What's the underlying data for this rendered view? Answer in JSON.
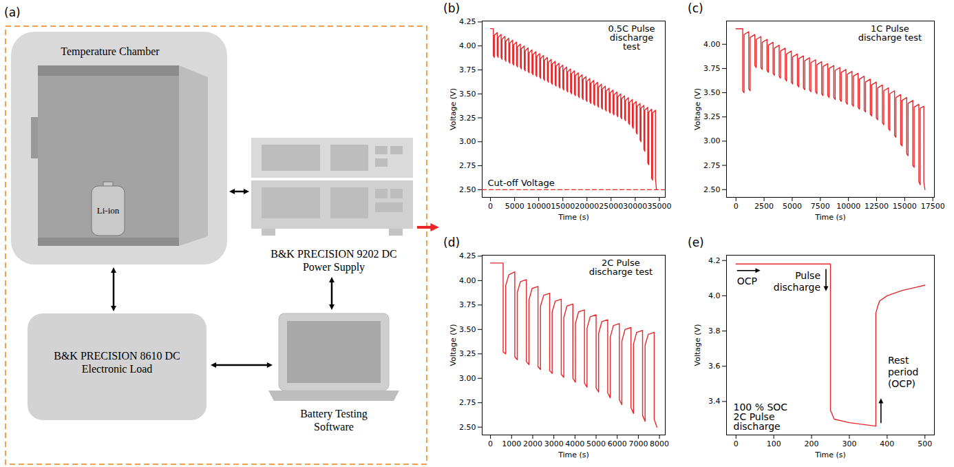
{
  "diagram": {
    "panel_label": "(a)",
    "nodes": [
      {
        "label": "Temperature Chamber"
      },
      {
        "label": "Li-ion"
      },
      {
        "label": "B&K PRECISION 9202 DC Power Supply"
      },
      {
        "label": "B&K PRECISION 8610 DC Electronic Load"
      },
      {
        "label": "Battery Testing Software"
      }
    ]
  },
  "chart_data": [
    {
      "type": "line",
      "panel_label": "(b)",
      "title": "0.5C Pulse discharge test",
      "x_label": "Time (s)",
      "y_label": "Voltage (V)",
      "xlim": [
        -1725,
        36225
      ],
      "ylim": [
        2.42,
        4.26
      ],
      "xticks": [
        0,
        5000,
        10000,
        15000,
        20000,
        25000,
        30000,
        35000
      ],
      "yticks": [
        {
          "value": 2.5,
          "label": "2.50"
        },
        2.75,
        {
          "value": 3,
          "label": "3.00"
        },
        3.25,
        {
          "value": 3.5,
          "label": "3.50"
        },
        3.75,
        {
          "value": 4,
          "label": "4.00"
        },
        4.25
      ],
      "x": [
        0,
        600,
        600,
        800,
        800,
        1400,
        1400,
        1600,
        1600,
        2200,
        2200,
        2400,
        2400,
        3000,
        3000,
        3200,
        3200,
        3800,
        3800,
        4000,
        4000,
        4600,
        4600,
        4800,
        4800,
        5400,
        5400,
        5600,
        5600,
        6200,
        6200,
        6400,
        6400,
        7000,
        7000,
        7200,
        7200,
        7800,
        7800,
        8000,
        8000,
        8600,
        8600,
        8800,
        8800,
        9400,
        9400,
        9600,
        9600,
        10200,
        10200,
        10400,
        10400,
        11000,
        11000,
        11200,
        11200,
        11800,
        11800,
        12000,
        12000,
        12600,
        12600,
        12800,
        12800,
        13400,
        13400,
        13600,
        13600,
        14200,
        14200,
        14400,
        14400,
        15000,
        15000,
        15200,
        15200,
        15800,
        15800,
        16000,
        16000,
        16600,
        16600,
        16800,
        16800,
        17400,
        17400,
        17600,
        17600,
        18200,
        18200,
        18400,
        18400,
        19000,
        19000,
        19200,
        19200,
        19800,
        19800,
        20000,
        20000,
        20600,
        20600,
        20800,
        20800,
        21400,
        21400,
        21600,
        21600,
        22200,
        22200,
        22400,
        22400,
        23000,
        23000,
        23200,
        23200,
        23800,
        23800,
        24000,
        24000,
        24600,
        24600,
        24800,
        24800,
        25400,
        25400,
        25600,
        25600,
        26200,
        26200,
        26400,
        26400,
        27000,
        27000,
        27200,
        27200,
        27800,
        27800,
        28000,
        28000,
        28600,
        28600,
        28800,
        28800,
        29400,
        29400,
        29600,
        29600,
        30200,
        30200,
        30400,
        30400,
        31000,
        31000,
        31200,
        31200,
        31800,
        31800,
        32000,
        32000,
        32600,
        32600,
        32800,
        32800,
        33400,
        33400,
        33600,
        33600,
        34200,
        34200,
        34400
      ],
      "series": [
        {
          "color": "#e8262a",
          "values": [
            4.18,
            4.18,
            3.9,
            3.88,
            4.11,
            4.14,
            3.9,
            3.88,
            4.09,
            4.12,
            3.88,
            3.86,
            4.07,
            4.1,
            3.86,
            3.84,
            4.05,
            4.08,
            3.84,
            3.82,
            4.03,
            4.06,
            3.82,
            3.8,
            4.01,
            4.04,
            3.8,
            3.78,
            3.99,
            4.02,
            3.78,
            3.76,
            3.97,
            4.0,
            3.76,
            3.74,
            3.95,
            3.98,
            3.74,
            3.72,
            3.93,
            3.96,
            3.72,
            3.7,
            3.91,
            3.94,
            3.7,
            3.68,
            3.89,
            3.92,
            3.68,
            3.66,
            3.87,
            3.9,
            3.66,
            3.64,
            3.85,
            3.88,
            3.64,
            3.62,
            3.83,
            3.86,
            3.62,
            3.6,
            3.81,
            3.84,
            3.6,
            3.58,
            3.79,
            3.82,
            3.58,
            3.56,
            3.77,
            3.8,
            3.56,
            3.54,
            3.75,
            3.78,
            3.54,
            3.52,
            3.73,
            3.76,
            3.52,
            3.5,
            3.71,
            3.74,
            3.5,
            3.48,
            3.69,
            3.72,
            3.48,
            3.46,
            3.67,
            3.7,
            3.46,
            3.44,
            3.65,
            3.68,
            3.44,
            3.42,
            3.63,
            3.66,
            3.42,
            3.4,
            3.61,
            3.64,
            3.4,
            3.38,
            3.59,
            3.62,
            3.38,
            3.36,
            3.57,
            3.6,
            3.36,
            3.34,
            3.55,
            3.58,
            3.34,
            3.32,
            3.53,
            3.56,
            3.32,
            3.3,
            3.51,
            3.54,
            3.3,
            3.28,
            3.49,
            3.52,
            3.28,
            3.26,
            3.47,
            3.5,
            3.26,
            3.24,
            3.45,
            3.48,
            3.24,
            3.22,
            3.43,
            3.46,
            3.2,
            3.18,
            3.41,
            3.44,
            3.16,
            3.14,
            3.39,
            3.42,
            3.1,
            3.08,
            3.37,
            3.4,
            3.02,
            3.0,
            3.35,
            3.38,
            2.92,
            2.9,
            3.33,
            3.36,
            2.78,
            2.76,
            3.31,
            3.34,
            2.62,
            2.6,
            3.3,
            3.33,
            2.62,
            2.5
          ]
        },
        {
          "name": "Cut-off Voltage",
          "color": "#e8262a",
          "line_style": "dashed",
          "x": [
            -1725,
            36225
          ],
          "values": [
            2.5,
            2.5
          ]
        }
      ]
    },
    {
      "type": "line",
      "panel_label": "(c)",
      "title": "1C Pulse discharge test",
      "x_label": "Time (s)",
      "y_label": "Voltage (V)",
      "xlim": [
        -840,
        17640
      ],
      "ylim": [
        2.42,
        4.24
      ],
      "xticks": [
        0,
        2500,
        5000,
        7500,
        10000,
        12500,
        15000,
        17500
      ],
      "yticks": [
        {
          "value": 2.5,
          "label": "2.50"
        },
        2.75,
        {
          "value": 3,
          "label": "3.00"
        },
        3.25,
        {
          "value": 3.5,
          "label": "3.50"
        },
        3.75,
        {
          "value": 4,
          "label": "4.00"
        }
      ],
      "x": [
        0,
        600,
        600,
        720,
        720,
        1140,
        1140,
        1260,
        1260,
        1680,
        1680,
        1800,
        1800,
        2220,
        2220,
        2340,
        2340,
        2760,
        2760,
        2880,
        2880,
        3300,
        3300,
        3420,
        3420,
        3840,
        3840,
        3960,
        3960,
        4380,
        4380,
        4500,
        4500,
        4920,
        4920,
        5040,
        5040,
        5460,
        5460,
        5580,
        5580,
        6000,
        6000,
        6120,
        6120,
        6540,
        6540,
        6660,
        6660,
        7080,
        7080,
        7200,
        7200,
        7620,
        7620,
        7740,
        7740,
        8160,
        8160,
        8280,
        8280,
        8700,
        8700,
        8820,
        8820,
        9240,
        9240,
        9360,
        9360,
        9780,
        9780,
        9900,
        9900,
        10320,
        10320,
        10440,
        10440,
        10860,
        10860,
        10980,
        10980,
        11400,
        11400,
        11520,
        11520,
        11940,
        11940,
        12060,
        12060,
        12480,
        12480,
        12600,
        12600,
        13020,
        13020,
        13140,
        13140,
        13560,
        13560,
        13680,
        13680,
        14100,
        14100,
        14220,
        14220,
        14640,
        14640,
        14760,
        14760,
        15180,
        15180,
        15300,
        15300,
        15720,
        15720,
        15840,
        15840,
        16260,
        16260,
        16380,
        16380,
        16700,
        16700,
        16800
      ],
      "series": [
        {
          "color": "#e8262a",
          "values": [
            4.16,
            4.16,
            3.52,
            3.5,
            4.1,
            4.13,
            3.54,
            3.52,
            4.07,
            4.1,
            3.78,
            3.76,
            4.05,
            4.08,
            3.76,
            3.74,
            4.02,
            4.05,
            3.73,
            3.71,
            3.99,
            4.02,
            3.7,
            3.68,
            3.96,
            3.99,
            3.67,
            3.65,
            3.93,
            3.96,
            3.64,
            3.62,
            3.9,
            3.93,
            3.61,
            3.59,
            3.87,
            3.9,
            3.58,
            3.56,
            3.85,
            3.88,
            3.55,
            3.53,
            3.83,
            3.86,
            3.53,
            3.51,
            3.81,
            3.84,
            3.51,
            3.49,
            3.79,
            3.82,
            3.49,
            3.47,
            3.77,
            3.8,
            3.47,
            3.45,
            3.75,
            3.78,
            3.45,
            3.43,
            3.73,
            3.76,
            3.43,
            3.41,
            3.71,
            3.74,
            3.4,
            3.38,
            3.69,
            3.72,
            3.38,
            3.36,
            3.67,
            3.7,
            3.35,
            3.33,
            3.64,
            3.67,
            3.32,
            3.3,
            3.61,
            3.64,
            3.28,
            3.26,
            3.58,
            3.61,
            3.24,
            3.22,
            3.55,
            3.58,
            3.19,
            3.17,
            3.52,
            3.55,
            3.13,
            3.11,
            3.49,
            3.52,
            3.06,
            3.04,
            3.45,
            3.48,
            2.97,
            2.95,
            3.42,
            3.45,
            2.87,
            2.85,
            3.39,
            3.42,
            2.75,
            2.73,
            3.35,
            3.38,
            2.58,
            2.55,
            3.34,
            3.36,
            2.58,
            2.5
          ]
        }
      ]
    },
    {
      "type": "line",
      "panel_label": "(d)",
      "title": "2C Pulse discharge test",
      "x_label": "Time (s)",
      "y_label": "Voltage (V)",
      "xlim": [
        -394,
        8274
      ],
      "ylim": [
        2.42,
        4.26
      ],
      "xticks": [
        0,
        1000,
        2000,
        3000,
        4000,
        5000,
        6000,
        7000,
        8000
      ],
      "yticks": [
        {
          "value": 2.5,
          "label": "2.50"
        },
        2.75,
        {
          "value": 3,
          "label": "3.00"
        },
        3.25,
        {
          "value": 3.5,
          "label": "3.50"
        },
        3.75,
        {
          "value": 4,
          "label": "4.00"
        },
        4.25
      ],
      "x": [
        0,
        600,
        600,
        720,
        720,
        870,
        1150,
        1150,
        1270,
        1270,
        1420,
        1700,
        1700,
        1820,
        1820,
        1970,
        2250,
        2250,
        2370,
        2370,
        2520,
        2800,
        2800,
        2920,
        2920,
        3070,
        3350,
        3350,
        3470,
        3470,
        3620,
        3900,
        3900,
        4020,
        4020,
        4170,
        4450,
        4450,
        4570,
        4570,
        4720,
        5000,
        5000,
        5120,
        5120,
        5270,
        5550,
        5550,
        5670,
        5670,
        5820,
        6100,
        6100,
        6220,
        6220,
        6370,
        6650,
        6650,
        6770,
        6770,
        6920,
        7200,
        7200,
        7320,
        7320,
        7470,
        7750,
        7750,
        7880
      ],
      "series": [
        {
          "color": "#e8262a",
          "values": [
            4.18,
            4.18,
            3.27,
            3.25,
            3.95,
            4.06,
            4.09,
            3.22,
            3.19,
            3.88,
            3.99,
            4.01,
            3.17,
            3.14,
            3.8,
            3.92,
            3.94,
            3.12,
            3.09,
            3.74,
            3.85,
            3.87,
            3.08,
            3.05,
            3.68,
            3.79,
            3.81,
            3.04,
            3.01,
            3.62,
            3.74,
            3.76,
            3.0,
            2.96,
            3.56,
            3.68,
            3.7,
            2.95,
            2.91,
            3.51,
            3.63,
            3.65,
            2.9,
            2.86,
            3.46,
            3.58,
            3.6,
            2.85,
            2.8,
            3.42,
            3.54,
            3.56,
            2.78,
            2.73,
            3.38,
            3.5,
            3.52,
            2.7,
            2.64,
            3.35,
            3.47,
            3.49,
            2.62,
            2.56,
            3.34,
            3.45,
            3.47,
            2.58,
            2.5
          ]
        }
      ]
    },
    {
      "type": "line",
      "panel_label": "(e)",
      "x_label": "Time (s)",
      "y_label": "Voltage (V)",
      "xlim": [
        -25,
        525
      ],
      "ylim": [
        3.21,
        4.23
      ],
      "xticks": [
        0,
        100,
        200,
        300,
        400,
        500
      ],
      "yticks": [
        3.4,
        3.6,
        3.8,
        {
          "value": 4,
          "label": "4.0"
        },
        4.2
      ],
      "x": [
        0,
        250,
        250,
        260,
        300,
        370,
        370,
        375,
        380,
        400,
        440,
        480,
        500
      ],
      "series": [
        {
          "color": "#e8262a",
          "values": [
            4.18,
            4.18,
            3.35,
            3.3,
            3.28,
            3.26,
            3.9,
            3.94,
            3.97,
            4.0,
            4.03,
            4.05,
            4.06
          ]
        }
      ],
      "annotations": [
        {
          "text": "OCP"
        },
        {
          "text": "Pulse discharge"
        },
        {
          "text": "100 % SOC 2C Pulse discharge"
        },
        {
          "text": "Rest period (OCP)"
        }
      ]
    }
  ]
}
